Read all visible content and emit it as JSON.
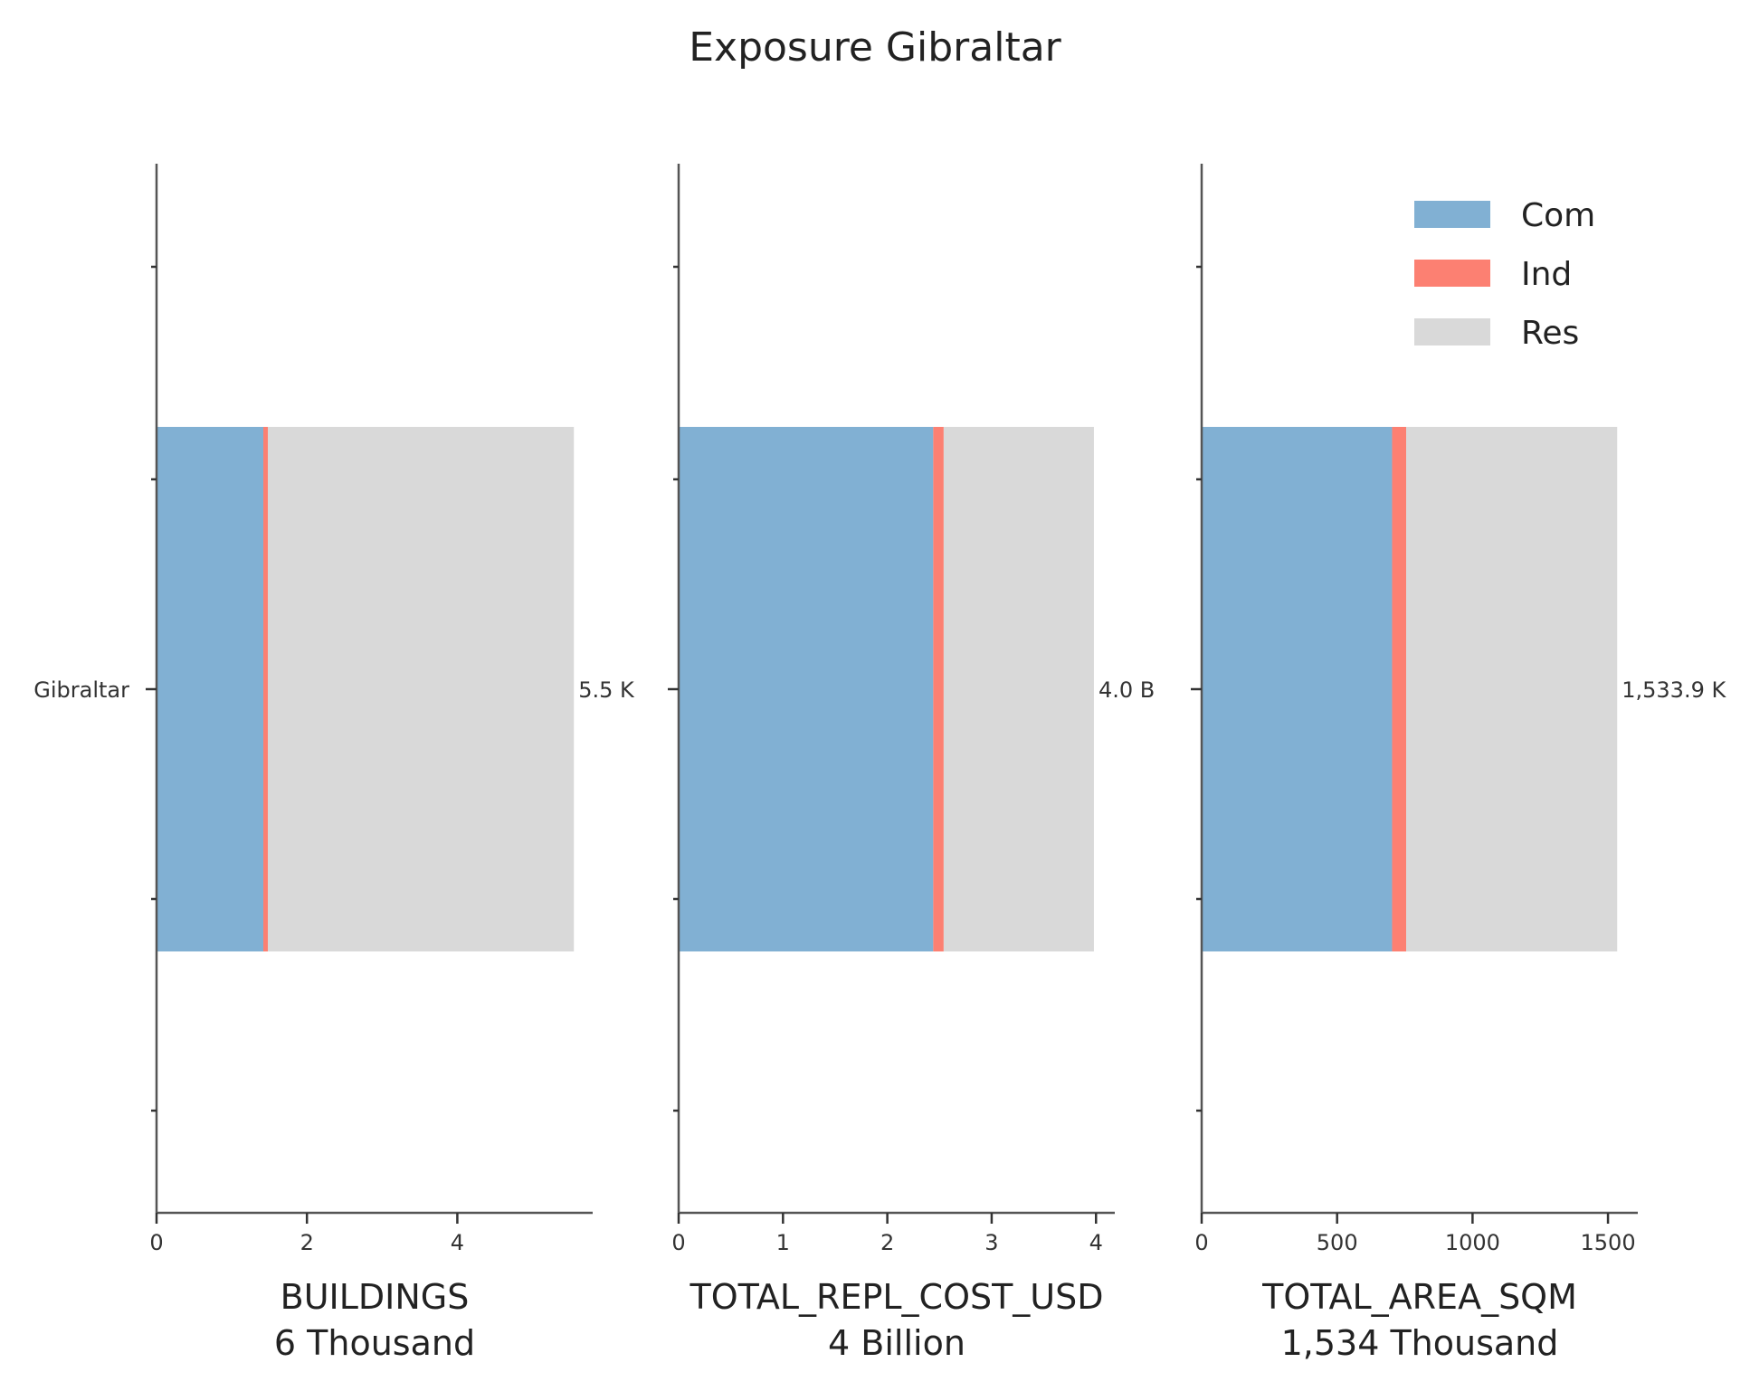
{
  "title": "Exposure Gibraltar",
  "colors": {
    "Com": "#81b0d3",
    "Ind": "#fc8072",
    "Res": "#d9d9d9"
  },
  "chart_data": [
    {
      "type": "bar",
      "orientation": "horizontal",
      "stacked": true,
      "categories": [
        "Gibraltar"
      ],
      "series": [
        {
          "name": "Com",
          "values": [
            1.42
          ]
        },
        {
          "name": "Ind",
          "values": [
            0.06
          ]
        },
        {
          "name": "Res",
          "values": [
            4.07
          ]
        }
      ],
      "total_label": "5.5 K",
      "xlabel": "BUILDINGS",
      "xlabel_sub": "6 Thousand",
      "xlim": [
        0,
        5.8
      ],
      "xticks": [
        0,
        2,
        4
      ],
      "legend": false
    },
    {
      "type": "bar",
      "orientation": "horizontal",
      "stacked": true,
      "categories": [
        "Gibraltar"
      ],
      "series": [
        {
          "name": "Com",
          "values": [
            2.44
          ]
        },
        {
          "name": "Ind",
          "values": [
            0.1
          ]
        },
        {
          "name": "Res",
          "values": [
            1.44
          ]
        }
      ],
      "total_label": "4.0 B",
      "xlabel": "TOTAL_REPL_COST_USD",
      "xlabel_sub": "4 Billion",
      "xlim": [
        0,
        4.18
      ],
      "xticks": [
        0,
        1,
        2,
        3,
        4
      ],
      "legend": false
    },
    {
      "type": "bar",
      "orientation": "horizontal",
      "stacked": true,
      "categories": [
        "Gibraltar"
      ],
      "series": [
        {
          "name": "Com",
          "values": [
            703
          ]
        },
        {
          "name": "Ind",
          "values": [
            52
          ]
        },
        {
          "name": "Res",
          "values": [
            779
          ]
        }
      ],
      "total_label": "1,533.9 K",
      "xlabel": "TOTAL_AREA_SQM",
      "xlabel_sub": "1,534 Thousand",
      "xlim": [
        0,
        1610
      ],
      "xticks": [
        0,
        500,
        1000,
        1500
      ],
      "legend": true,
      "legend_position": "top-right"
    }
  ]
}
